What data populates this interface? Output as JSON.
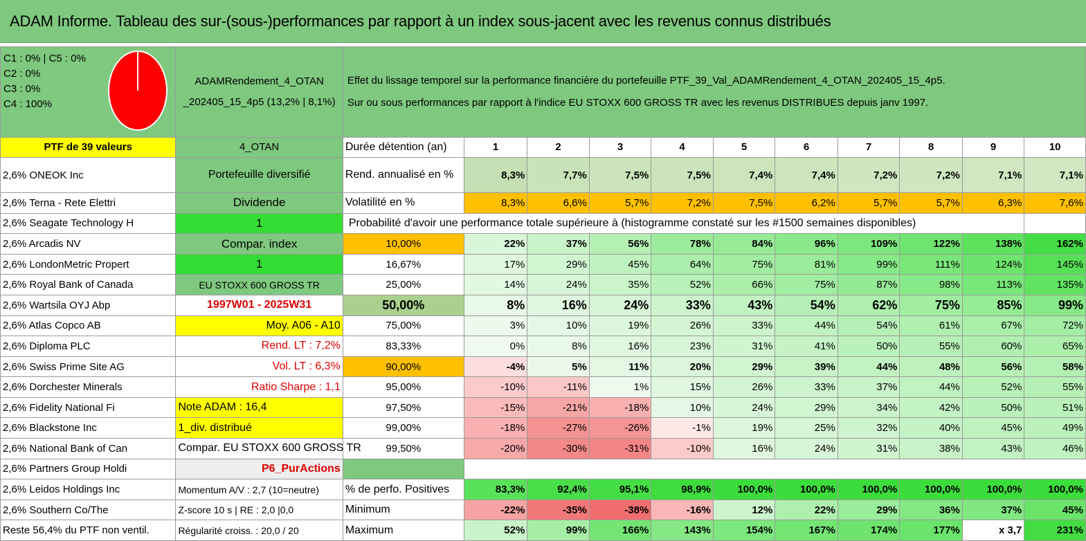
{
  "title": "ADAM Informe. Tableau des sur-(sous-)performances par rapport à un index sous-jacent avec les revenus connus distribués",
  "colors": {
    "header_green": "#7fc87f",
    "yellow": "#ffff00",
    "bright_green": "#33dd33",
    "orange": "#ffc000",
    "red": "#ff0000"
  },
  "pie_legend": [
    "C1 : 0% | C5 : 0%",
    "C2 : 0%",
    "C3 : 0%",
    "C4 : 100%"
  ],
  "portfolio_name": "ADAMRendement_4_OTAN _202405_15_4p5 (13,2% | 8,1%)",
  "description_line1": "Effet du lissage temporel sur la performance financière du portefeuille PTF_39_Val_ADAMRendement_4_OTAN_202405_15_4p5.",
  "description_line2": "Sur ou sous performances par rapport à l'indice EU STOXX 600 GROSS TR avec les revenus DISTRIBUES depuis janv 1997.",
  "ptf_label": "PTF de 39 valeurs",
  "ptf_code": "4_OTAN",
  "durations_label": "Durée détention (an)",
  "durations": [
    "1",
    "2",
    "3",
    "4",
    "5",
    "6",
    "7",
    "8",
    "9",
    "10"
  ],
  "rend_label": "Rend. annualisé en %",
  "rend": [
    "8,3%",
    "7,7%",
    "7,5%",
    "7,5%",
    "7,4%",
    "7,4%",
    "7,2%",
    "7,2%",
    "7,1%",
    "7,1%"
  ],
  "vol_label": "Volatilité en %",
  "vol": [
    "8,3%",
    "6,6%",
    "5,7%",
    "7,2%",
    "7,5%",
    "6,2%",
    "5,7%",
    "5,7%",
    "6,3%",
    "7,6%"
  ],
  "proba_label": "Probabilité d'avoir une performance totale supérieure à (histogramme constaté sur les #1500 semaines disponibles)",
  "holdings": [
    "2,6% ONEOK Inc",
    "2,6% Terna - Rete Elettri",
    "2,6% Seagate Technology H",
    "2,6% Arcadis NV",
    "2,6% LondonMetric Propert",
    "2,6% Royal Bank of Canada",
    "2,6% Wartsila OYJ Abp",
    "2,6% Atlas Copco AB",
    "2,6% Diploma PLC",
    "2,6% Swiss Prime Site AG",
    "2,6% Dorchester Minerals",
    "2,6% Fidelity National Fi",
    "2,6% Blackstone Inc",
    "2,6% National Bank of Can",
    "2,6% Partners Group Holdi",
    "2,6% Leidos Holdings Inc",
    "2,6% Southern Co/The",
    "Reste 56,4% du PTF non ventil."
  ],
  "info": [
    "Portefeuille diversifié",
    "Dividende",
    "1",
    "Compar. index",
    "1",
    "EU STOXX 600 GROSS TR",
    "1997W01 - 2025W31",
    "Moy. A06 - A10",
    "Rend. LT : 7,2%",
    "Vol. LT : 6,3%",
    "Ratio Sharpe : 1,1",
    "Note ADAM : 16,4",
    "1_div. distribué",
    "Compar. EU STOXX 600 GROSS TR",
    "P6_PurActions",
    "Momentum A/V : 2,7 (10=neutre)",
    "Z-score 10 s | RE : 2,0 |0,0",
    "Régularité croiss. : 20,0 / 20"
  ],
  "proba_rows": [
    {
      "p": "10,00%",
      "v": [
        "22%",
        "37%",
        "56%",
        "78%",
        "84%",
        "96%",
        "109%",
        "122%",
        "138%",
        "162%"
      ]
    },
    {
      "p": "16,67%",
      "v": [
        "17%",
        "29%",
        "45%",
        "64%",
        "75%",
        "81%",
        "99%",
        "111%",
        "124%",
        "145%"
      ]
    },
    {
      "p": "25,00%",
      "v": [
        "14%",
        "24%",
        "35%",
        "52%",
        "66%",
        "75%",
        "87%",
        "98%",
        "113%",
        "135%"
      ]
    },
    {
      "p": "50,00%",
      "v": [
        "8%",
        "16%",
        "24%",
        "33%",
        "43%",
        "54%",
        "62%",
        "75%",
        "85%",
        "99%"
      ]
    },
    {
      "p": "75,00%",
      "v": [
        "3%",
        "10%",
        "19%",
        "26%",
        "33%",
        "44%",
        "54%",
        "61%",
        "67%",
        "72%"
      ]
    },
    {
      "p": "83,33%",
      "v": [
        "0%",
        "8%",
        "16%",
        "23%",
        "31%",
        "41%",
        "50%",
        "55%",
        "60%",
        "65%"
      ]
    },
    {
      "p": "90,00%",
      "v": [
        "-4%",
        "5%",
        "11%",
        "20%",
        "29%",
        "39%",
        "44%",
        "48%",
        "56%",
        "58%"
      ]
    },
    {
      "p": "95,00%",
      "v": [
        "-10%",
        "-11%",
        "1%",
        "15%",
        "26%",
        "33%",
        "37%",
        "44%",
        "52%",
        "55%"
      ]
    },
    {
      "p": "97,50%",
      "v": [
        "-15%",
        "-21%",
        "-18%",
        "10%",
        "24%",
        "29%",
        "34%",
        "42%",
        "50%",
        "51%"
      ]
    },
    {
      "p": "99,00%",
      "v": [
        "-18%",
        "-27%",
        "-26%",
        "-1%",
        "19%",
        "25%",
        "32%",
        "40%",
        "45%",
        "49%"
      ]
    },
    {
      "p": "99,50%",
      "v": [
        "-20%",
        "-30%",
        "-31%",
        "-10%",
        "16%",
        "24%",
        "31%",
        "38%",
        "43%",
        "46%"
      ]
    }
  ],
  "pos_label": "% de perfo. Positives",
  "pos": [
    "83,3%",
    "92,4%",
    "95,1%",
    "98,9%",
    "100,0%",
    "100,0%",
    "100,0%",
    "100,0%",
    "100,0%",
    "100,0%"
  ],
  "min_label": "Minimum",
  "min": [
    "-22%",
    "-35%",
    "-38%",
    "-16%",
    "12%",
    "22%",
    "29%",
    "36%",
    "37%",
    "45%"
  ],
  "max_label": "Maximum",
  "max": [
    "52%",
    "99%",
    "166%",
    "143%",
    "154%",
    "167%",
    "174%",
    "177%",
    "x 3,7",
    "231%"
  ]
}
